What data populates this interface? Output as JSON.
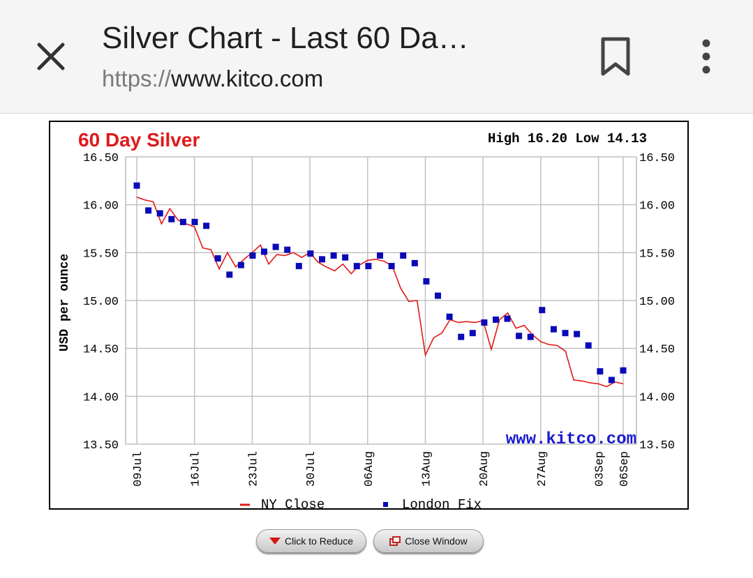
{
  "browser": {
    "title": "Silver Chart - Last 60 Da…",
    "url_scheme": "https://",
    "url_host": "www.kitco.com"
  },
  "chart_heading": {
    "title": "60 Day Silver",
    "high_low": "High 16.20 Low 14.13",
    "watermark": "www.kitco.com"
  },
  "buttons": {
    "reduce": "Click to Reduce",
    "close": "Close Window"
  },
  "colors": {
    "title_red": "#e0191a",
    "ny_close_line": "#e01818",
    "london_fix_marker": "#0a0ab8",
    "grid": "#c0c0c0",
    "watermark_blue": "#1a1ad0"
  },
  "chart_data": {
    "type": "line",
    "title": "60 Day Silver",
    "ylabel": "USD per ounce",
    "ylim": [
      13.5,
      16.5
    ],
    "y_ticks": [
      "16.50",
      "16.00",
      "15.50",
      "15.00",
      "14.50",
      "14.00",
      "13.50"
    ],
    "x_tick_labels": [
      "09Jul",
      "16Jul",
      "23Jul",
      "30Jul",
      "06Aug",
      "13Aug",
      "20Aug",
      "27Aug",
      "03Sep",
      "06Sep"
    ],
    "x_tick_days": [
      0,
      7,
      14,
      21,
      28,
      35,
      42,
      49,
      56,
      59
    ],
    "legend": [
      "NY Close",
      "London Fix"
    ],
    "legend_position": "bottom",
    "grid": true,
    "series": [
      {
        "name": "NY Close",
        "x": [
          0,
          1,
          2,
          3,
          4,
          5,
          6,
          7,
          8,
          9,
          10,
          11,
          12,
          13,
          14,
          15,
          16,
          17,
          18,
          19,
          20,
          21,
          22,
          23,
          24,
          25,
          26,
          27,
          28,
          29,
          30,
          31,
          32,
          33,
          34,
          35,
          36,
          37,
          38,
          39,
          40,
          41,
          42,
          43,
          44,
          45,
          46,
          47,
          48,
          49,
          50,
          51,
          52,
          53,
          54,
          55,
          56,
          57,
          58,
          59
        ],
        "values": [
          16.08,
          16.05,
          16.03,
          15.8,
          15.96,
          15.84,
          15.8,
          15.77,
          15.55,
          15.53,
          15.33,
          15.5,
          15.35,
          15.43,
          15.5,
          15.58,
          15.38,
          15.48,
          15.47,
          15.5,
          15.45,
          15.5,
          15.4,
          15.35,
          15.31,
          15.38,
          15.28,
          15.37,
          15.42,
          15.43,
          15.41,
          15.36,
          15.13,
          14.99,
          15.0,
          14.43,
          14.61,
          14.66,
          14.8,
          14.77,
          14.78,
          14.77,
          14.79,
          14.49,
          14.8,
          14.87,
          14.71,
          14.74,
          14.64,
          14.57,
          14.54,
          14.53,
          14.47,
          14.17,
          14.16,
          14.14,
          14.13,
          14.1,
          14.15,
          14.13
        ]
      },
      {
        "name": "London Fix",
        "x": [
          0,
          1,
          2,
          3,
          4,
          5,
          6,
          7,
          8,
          9,
          10,
          11,
          12,
          13,
          14,
          15,
          16,
          17,
          18,
          19,
          20,
          21,
          22,
          23,
          24,
          25,
          26,
          27,
          28,
          29,
          30,
          31,
          32,
          33,
          34,
          35,
          36,
          37,
          38,
          39,
          40,
          41,
          42,
          43,
          44,
          45,
          46,
          47,
          48,
          49,
          50,
          51,
          52
        ],
        "values": [
          16.2,
          15.94,
          15.91,
          15.85,
          15.82,
          15.82,
          15.78,
          15.44,
          15.27,
          15.37,
          15.47,
          15.51,
          15.56,
          15.53,
          15.36,
          15.49,
          15.43,
          15.47,
          15.45,
          15.36,
          15.36,
          15.47,
          15.36,
          15.47,
          15.39,
          15.2,
          15.05,
          14.83,
          14.62,
          14.66,
          14.77,
          14.8,
          14.81,
          14.63,
          14.62,
          14.9,
          14.7,
          14.66,
          14.65,
          14.53,
          14.26,
          14.17,
          14.27,
          14.27,
          14.27,
          14.27,
          14.27,
          14.27,
          14.27,
          14.27,
          14.27,
          14.27,
          14.27
        ]
      }
    ]
  }
}
